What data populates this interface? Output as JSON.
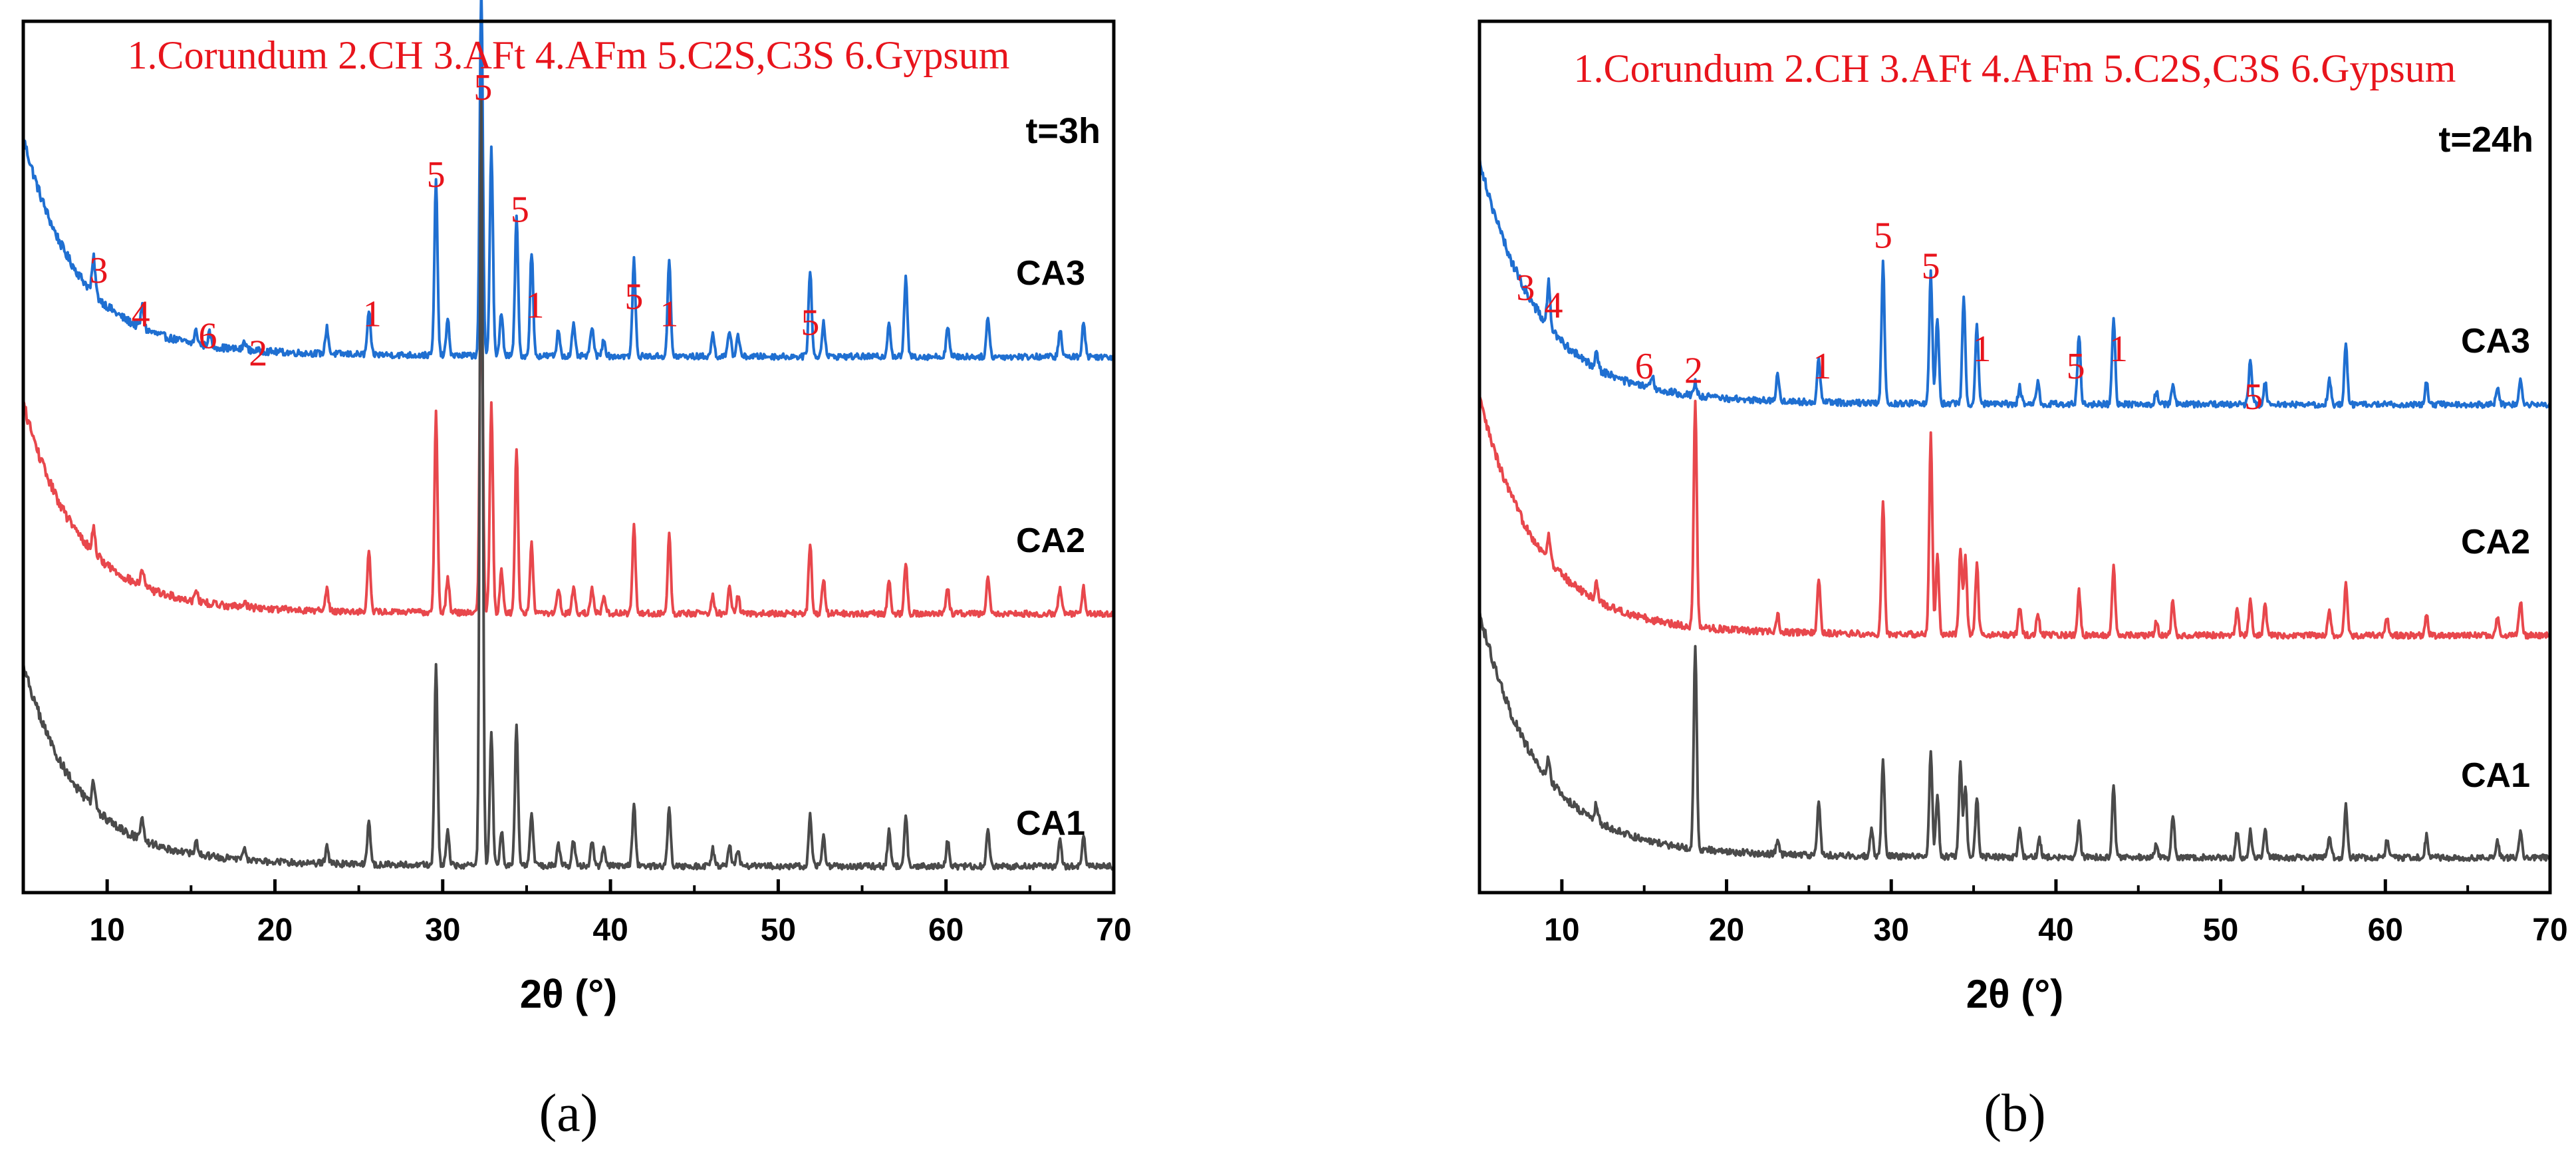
{
  "chart_data": [
    {
      "type": "line",
      "panel_label": "(a)",
      "legend_text": "1.Corundum 2.CH 3.AFt 4.AFm 5.C2S,C3S 6.Gypsum",
      "time_label": "t=3h",
      "xlabel": "2θ (°)",
      "ylabel": "",
      "xlim": [
        5,
        70
      ],
      "ylim": [
        0,
        100
      ],
      "x_ticks": [
        10,
        20,
        30,
        40,
        50,
        60,
        70
      ],
      "series": [
        {
          "name": "CA3",
          "color": "#1f6fd1",
          "baseline": 61.5,
          "bg_amp": 24,
          "bg_decay": 3.2,
          "noise": 0.7,
          "peaks": [
            [
              9.2,
              4
            ],
            [
              12.1,
              2.5
            ],
            [
              15.3,
              1.5
            ],
            [
              16.1,
              1.5
            ],
            [
              18.2,
              1
            ],
            [
              23.1,
              3
            ],
            [
              25.6,
              5
            ],
            [
              29.6,
              20
            ],
            [
              30.3,
              4
            ],
            [
              32.3,
              42
            ],
            [
              32.9,
              24
            ],
            [
              33.5,
              5
            ],
            [
              34.4,
              16
            ],
            [
              35.3,
              12
            ],
            [
              36.9,
              3
            ],
            [
              37.8,
              3.5
            ],
            [
              38.9,
              3.5
            ],
            [
              39.6,
              2
            ],
            [
              41.4,
              11
            ],
            [
              43.5,
              11
            ],
            [
              46.1,
              2.5
            ],
            [
              47.1,
              3
            ],
            [
              47.6,
              2.5
            ],
            [
              51.9,
              10
            ],
            [
              52.7,
              4
            ],
            [
              56.6,
              4
            ],
            [
              57.6,
              9
            ],
            [
              60.1,
              3.5
            ],
            [
              62.5,
              4.5
            ],
            [
              66.8,
              3
            ],
            [
              68.2,
              4
            ]
          ]
        },
        {
          "name": "CA2",
          "color": "#e8474c",
          "baseline": 32,
          "bg_amp": 23,
          "bg_decay": 3.2,
          "noise": 0.7,
          "peaks": [
            [
              9.2,
              3
            ],
            [
              12.1,
              2
            ],
            [
              15.3,
              1.5
            ],
            [
              18.2,
              0.8
            ],
            [
              23.1,
              2.5
            ],
            [
              25.6,
              7
            ],
            [
              29.6,
              23
            ],
            [
              30.3,
              4
            ],
            [
              32.3,
              41
            ],
            [
              32.9,
              24
            ],
            [
              33.5,
              5
            ],
            [
              34.4,
              19
            ],
            [
              35.3,
              8
            ],
            [
              36.9,
              3
            ],
            [
              37.8,
              3
            ],
            [
              38.9,
              3
            ],
            [
              39.6,
              2
            ],
            [
              41.4,
              10
            ],
            [
              43.5,
              9
            ],
            [
              46.1,
              2
            ],
            [
              47.1,
              3
            ],
            [
              47.6,
              2
            ],
            [
              51.9,
              8
            ],
            [
              52.7,
              4
            ],
            [
              56.6,
              4
            ],
            [
              57.6,
              6
            ],
            [
              60.1,
              3
            ],
            [
              62.5,
              4.5
            ],
            [
              66.8,
              3
            ],
            [
              68.2,
              3
            ]
          ]
        },
        {
          "name": "CA1",
          "color": "#4a4a4a",
          "baseline": 3,
          "bg_amp": 22,
          "bg_decay": 3.2,
          "noise": 0.7,
          "peaks": [
            [
              9.2,
              3
            ],
            [
              12.1,
              2.5
            ],
            [
              15.3,
              1.5
            ],
            [
              18.2,
              1.5
            ],
            [
              23.1,
              2
            ],
            [
              25.6,
              5
            ],
            [
              29.6,
              23
            ],
            [
              30.3,
              4
            ],
            [
              32.3,
              88
            ],
            [
              32.9,
              15
            ],
            [
              33.5,
              4
            ],
            [
              34.4,
              16
            ],
            [
              35.3,
              6
            ],
            [
              36.9,
              2.5
            ],
            [
              37.8,
              3
            ],
            [
              38.9,
              3
            ],
            [
              39.6,
              2
            ],
            [
              41.4,
              7
            ],
            [
              43.5,
              7
            ],
            [
              46.1,
              2
            ],
            [
              47.1,
              2.5
            ],
            [
              47.6,
              2
            ],
            [
              51.9,
              6
            ],
            [
              52.7,
              3.5
            ],
            [
              56.6,
              4
            ],
            [
              57.6,
              6
            ],
            [
              60.1,
              3
            ],
            [
              62.5,
              4
            ],
            [
              66.8,
              3
            ],
            [
              68.2,
              3.5
            ]
          ]
        }
      ],
      "series_labels": [
        "CA3",
        "CA2",
        "CA1"
      ],
      "peak_annotations": [
        {
          "label": "3",
          "x": 9.5,
          "y": 70
        },
        {
          "label": "4",
          "x": 12.0,
          "y": 65
        },
        {
          "label": "6",
          "x": 16.0,
          "y": 62.5
        },
        {
          "label": "2",
          "x": 19.0,
          "y": 60.5
        },
        {
          "label": "1",
          "x": 25.8,
          "y": 65
        },
        {
          "label": "5",
          "x": 29.6,
          "y": 81
        },
        {
          "label": "5",
          "x": 32.4,
          "y": 91
        },
        {
          "label": "5",
          "x": 34.6,
          "y": 77
        },
        {
          "label": "1",
          "x": 35.5,
          "y": 66
        },
        {
          "label": "5",
          "x": 41.4,
          "y": 67
        },
        {
          "label": "1",
          "x": 43.5,
          "y": 65
        },
        {
          "label": "5",
          "x": 51.9,
          "y": 64
        }
      ]
    },
    {
      "type": "line",
      "panel_label": "(b)",
      "legend_text": "1.Corundum 2.CH 3.AFt 4.AFm 5.C2S,C3S 6.Gypsum",
      "time_label": "t=24h",
      "xlabel": "2θ (°)",
      "ylabel": "",
      "xlim": [
        5,
        70
      ],
      "ylim": [
        0,
        100
      ],
      "x_ticks": [
        10,
        20,
        30,
        40,
        50,
        60,
        70
      ],
      "series": [
        {
          "name": "CA3",
          "color": "#1f6fd1",
          "baseline": 56,
          "bg_amp": 27,
          "bg_decay": 3.5,
          "noise": 0.7,
          "peaks": [
            [
              9.2,
              5
            ],
            [
              12.1,
              2
            ],
            [
              15.5,
              1.5
            ],
            [
              18.1,
              1.5
            ],
            [
              23.1,
              3
            ],
            [
              25.6,
              5
            ],
            [
              29.5,
              16
            ],
            [
              32.4,
              15
            ],
            [
              32.8,
              10
            ],
            [
              34.4,
              12
            ],
            [
              35.2,
              9
            ],
            [
              37.8,
              2
            ],
            [
              38.9,
              2.5
            ],
            [
              41.4,
              8
            ],
            [
              43.5,
              10
            ],
            [
              46.1,
              1.5
            ],
            [
              47.1,
              2
            ],
            [
              51.8,
              5
            ],
            [
              52.7,
              2.5
            ],
            [
              56.6,
              3
            ],
            [
              57.6,
              7
            ],
            [
              62.5,
              2.5
            ],
            [
              66.8,
              2
            ],
            [
              68.2,
              3
            ]
          ]
        },
        {
          "name": "CA2",
          "color": "#e8474c",
          "baseline": 29.5,
          "bg_amp": 26,
          "bg_decay": 3.5,
          "noise": 0.7,
          "peaks": [
            [
              9.2,
              3
            ],
            [
              12.1,
              2
            ],
            [
              18.1,
              26
            ],
            [
              23.1,
              2
            ],
            [
              25.6,
              6
            ],
            [
              29.5,
              15
            ],
            [
              32.4,
              23
            ],
            [
              32.8,
              9
            ],
            [
              34.2,
              10
            ],
            [
              34.5,
              9
            ],
            [
              35.2,
              8
            ],
            [
              37.8,
              3
            ],
            [
              38.9,
              2.5
            ],
            [
              41.4,
              5
            ],
            [
              43.5,
              8
            ],
            [
              46.1,
              1.5
            ],
            [
              47.1,
              4
            ],
            [
              51.0,
              3
            ],
            [
              51.8,
              4
            ],
            [
              52.7,
              3.5
            ],
            [
              56.6,
              3
            ],
            [
              57.6,
              6
            ],
            [
              60.1,
              2
            ],
            [
              62.5,
              2.5
            ],
            [
              66.8,
              2
            ],
            [
              68.2,
              4
            ]
          ]
        },
        {
          "name": "CA1",
          "color": "#4a4a4a",
          "baseline": 4,
          "bg_amp": 27,
          "bg_decay": 3.5,
          "noise": 0.7,
          "peaks": [
            [
              9.2,
              2.5
            ],
            [
              12.1,
              2
            ],
            [
              18.1,
              23
            ],
            [
              23.1,
              1.5
            ],
            [
              25.6,
              6
            ],
            [
              28.8,
              3
            ],
            [
              29.5,
              11
            ],
            [
              32.4,
              12
            ],
            [
              32.8,
              7
            ],
            [
              34.2,
              11
            ],
            [
              34.5,
              8
            ],
            [
              35.2,
              7
            ],
            [
              37.8,
              3
            ],
            [
              39.0,
              2
            ],
            [
              41.4,
              4
            ],
            [
              43.5,
              8
            ],
            [
              46.1,
              1.5
            ],
            [
              47.1,
              5
            ],
            [
              51.0,
              3
            ],
            [
              51.8,
              3
            ],
            [
              52.7,
              3.5
            ],
            [
              56.6,
              2.5
            ],
            [
              57.6,
              6
            ],
            [
              60.1,
              2
            ],
            [
              62.5,
              2.5
            ],
            [
              66.8,
              2
            ],
            [
              68.2,
              3
            ]
          ]
        }
      ],
      "series_labels": [
        "CA3",
        "CA2",
        "CA1"
      ],
      "peak_annotations": [
        {
          "label": "3",
          "x": 7.8,
          "y": 68
        },
        {
          "label": "4",
          "x": 9.5,
          "y": 66
        },
        {
          "label": "6",
          "x": 15.0,
          "y": 59
        },
        {
          "label": "2",
          "x": 18.0,
          "y": 58.5
        },
        {
          "label": "1",
          "x": 25.8,
          "y": 59
        },
        {
          "label": "5",
          "x": 29.5,
          "y": 74
        },
        {
          "label": "5",
          "x": 32.4,
          "y": 70.5
        },
        {
          "label": "1",
          "x": 35.5,
          "y": 61
        },
        {
          "label": "5",
          "x": 41.2,
          "y": 59
        },
        {
          "label": "1",
          "x": 43.8,
          "y": 61
        },
        {
          "label": "5",
          "x": 52.0,
          "y": 55.5
        }
      ]
    }
  ]
}
